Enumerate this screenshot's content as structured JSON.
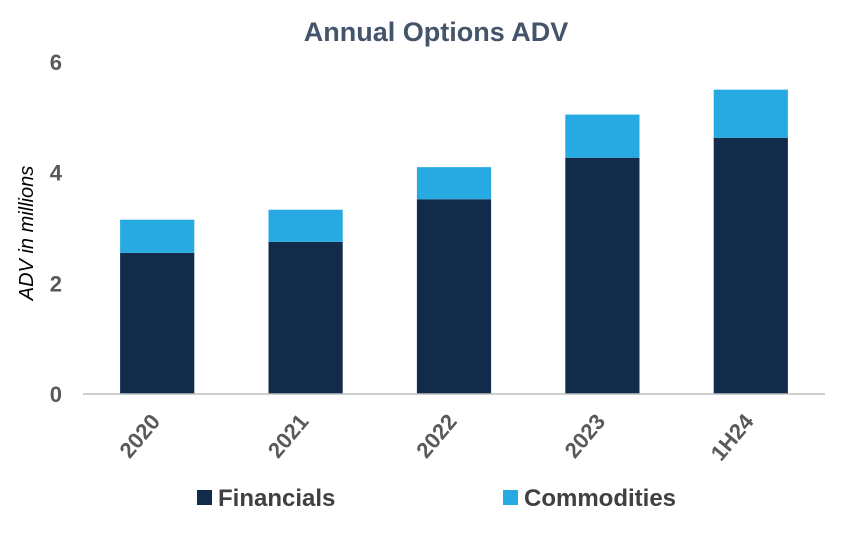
{
  "chart_data": {
    "type": "bar",
    "stacked": true,
    "title": "Annual Options ADV",
    "xlabel": "",
    "ylabel": "ADV in millions",
    "categories": [
      "2020",
      "2021",
      "2022",
      "2023",
      "1H24"
    ],
    "series": [
      {
        "name": "Financials",
        "color": "#132b4a",
        "values": [
          2.55,
          2.75,
          3.52,
          4.27,
          4.63
        ]
      },
      {
        "name": "Commodities",
        "color": "#27a9e1",
        "values": [
          0.6,
          0.58,
          0.58,
          0.78,
          0.87
        ]
      }
    ],
    "ylim": [
      0,
      6
    ],
    "yticks": [
      "0",
      "2",
      "4",
      "6"
    ],
    "grid": false,
    "legend_position": "bottom"
  }
}
